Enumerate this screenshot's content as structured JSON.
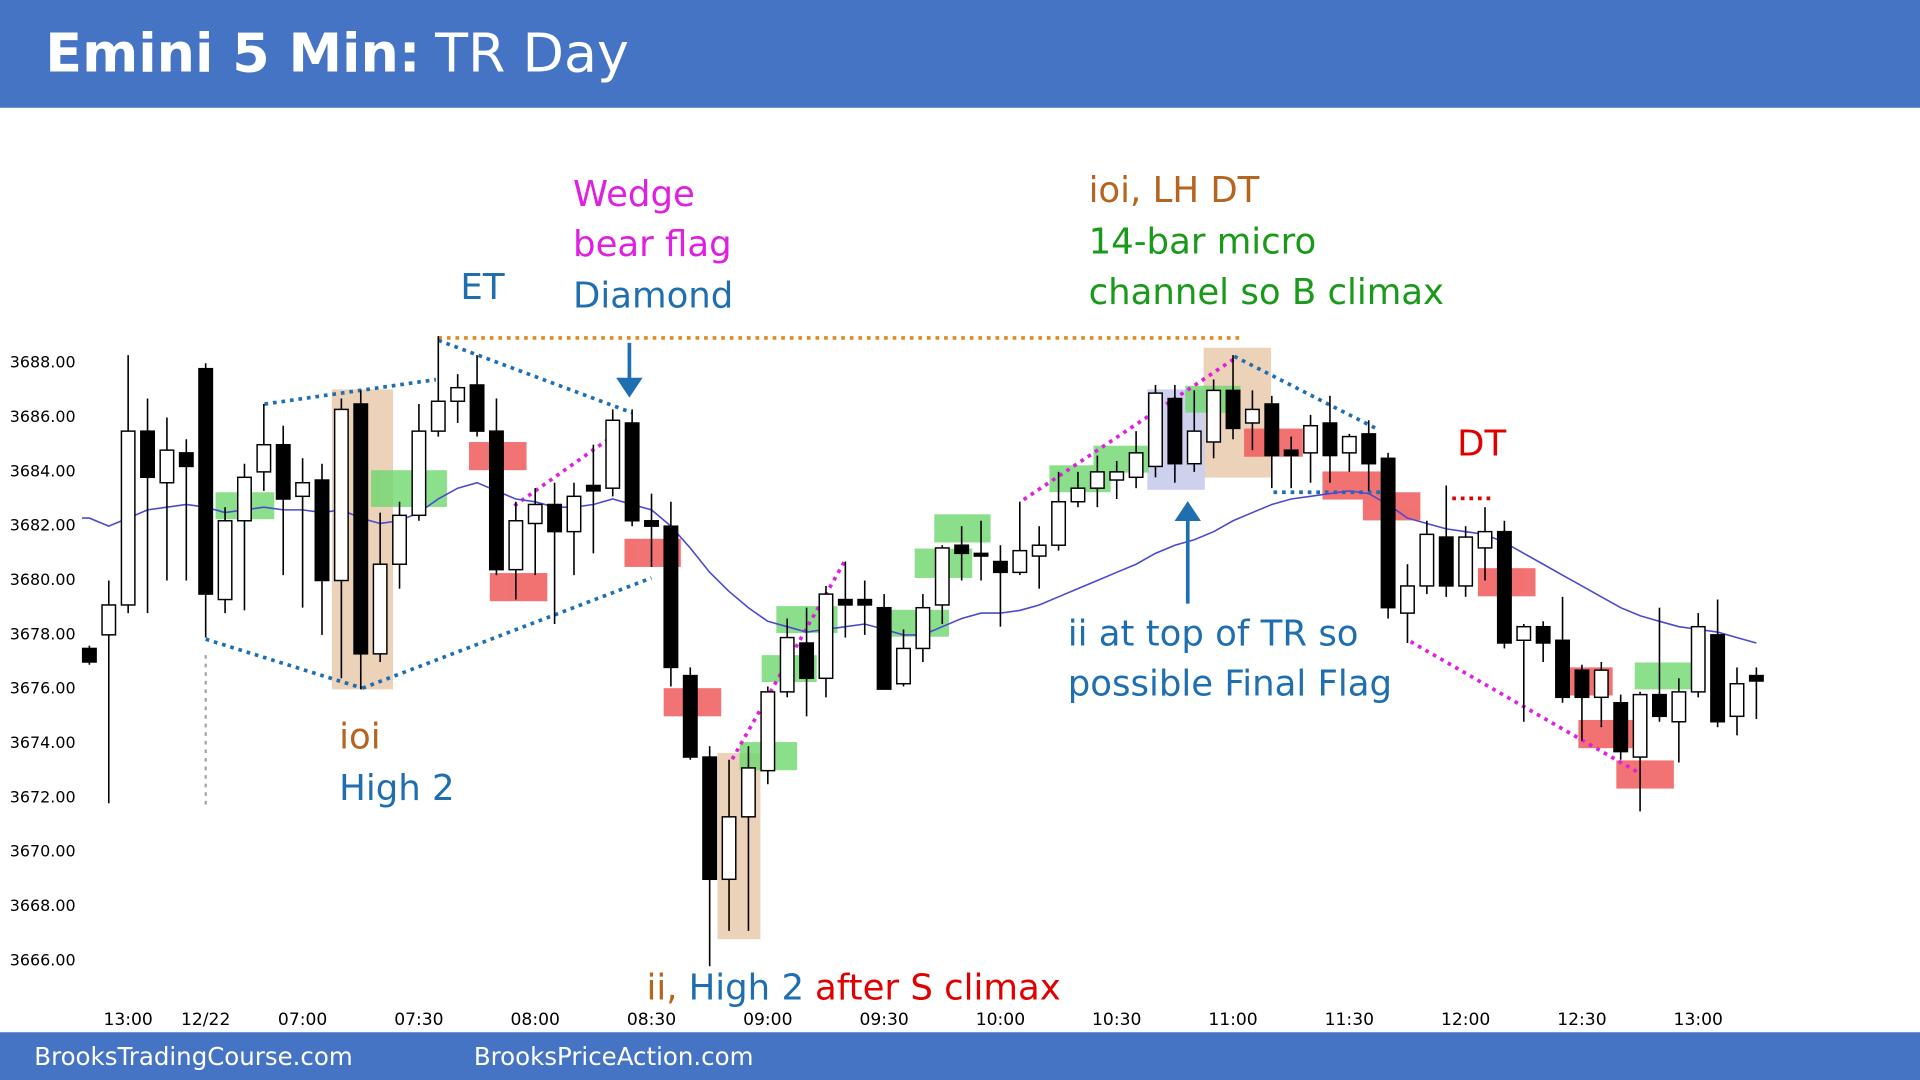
{
  "header": {
    "title_bold": "Emini 5 Min:",
    "title_rest": "TR Day"
  },
  "footer": {
    "left": "BrooksTradingCourse.com",
    "right": "BrooksPriceAction.com"
  },
  "chart_data": {
    "type": "candlestick",
    "categories": [
      null,
      null,
      "13:00",
      null,
      null,
      null,
      "12/22",
      null,
      null,
      null,
      null,
      "07:00",
      null,
      null,
      null,
      null,
      null,
      "07:30",
      null,
      null,
      null,
      null,
      null,
      "08:00",
      null,
      null,
      null,
      null,
      null,
      "08:30",
      null,
      null,
      null,
      null,
      null,
      "09:00",
      null,
      null,
      null,
      null,
      null,
      "09:30",
      null,
      null,
      null,
      null,
      null,
      "10:00",
      null,
      null,
      null,
      null,
      null,
      "10:30",
      null,
      null,
      null,
      null,
      null,
      "11:00",
      null,
      null,
      null,
      null,
      null,
      "11:30",
      null,
      null,
      null,
      null,
      null,
      "12:00",
      null,
      null,
      null,
      null,
      null,
      "12:30",
      null,
      null,
      null,
      null,
      null,
      "13:00",
      null,
      null,
      null
    ],
    "open": [
      3677.5,
      3678,
      3679.1,
      3685.5,
      3683.6,
      3684.7,
      3687.8,
      3679.3,
      3682.2,
      3684,
      3685,
      3683.1,
      3683.7,
      3680,
      3686.5,
      3677.3,
      3680.6,
      3682.4,
      3685.5,
      3686.6,
      3687.2,
      3685.5,
      3680.4,
      3682.1,
      3682.8,
      3681.8,
      3683.5,
      3683.4,
      3685.8,
      3682.2,
      3682,
      3676.5,
      3673.5,
      3669,
      3671.3,
      3673,
      3675.9,
      3677.7,
      3676.4,
      3679.3,
      3679.3,
      3679,
      3676.2,
      3677.5,
      3679.1,
      3681.3,
      3681,
      3680.7,
      3680.3,
      3680.9,
      3681.3,
      3682.9,
      3683.4,
      3683.7,
      3683.8,
      3684.2,
      3686.7,
      3684.3,
      3685.1,
      3687,
      3685.8,
      3686.5,
      3684.8,
      3684.7,
      3685.8,
      3684.7,
      3685.4,
      3684.5,
      3678.8,
      3679.8,
      3681.6,
      3679.8,
      3681.2,
      3681.8,
      3677.8,
      3678.3,
      3677.8,
      3676.7,
      3675.7,
      3675.5,
      3673.5,
      3675.8,
      3674.8,
      3675.9,
      3678,
      3675,
      3676.5
    ],
    "high": [
      3677.6,
      3680,
      3688.3,
      3686.7,
      3686,
      3685.2,
      3688,
      3682.7,
      3684.3,
      3686.5,
      3685.7,
      3684.5,
      3684.3,
      3686.7,
      3687,
      3682.5,
      3682.9,
      3686.5,
      3689,
      3687.6,
      3688.3,
      3686.7,
      3682.9,
      3683.4,
      3683.6,
      3683.6,
      3685,
      3686.3,
      3686.3,
      3683.2,
      3682.9,
      3676.8,
      3673.9,
      3673.4,
      3673.9,
      3676.1,
      3678.6,
      3679,
      3679.8,
      3680.7,
      3680,
      3679.5,
      3678.2,
      3679.5,
      3681.3,
      3682,
      3682.2,
      3681.3,
      3682.9,
      3682,
      3684,
      3684,
      3684.6,
      3684.4,
      3685.5,
      3687.2,
      3687.2,
      3687,
      3687.4,
      3688.3,
      3687,
      3686.8,
      3685.3,
      3686.1,
      3686.8,
      3685.4,
      3685.9,
      3684.7,
      3680.6,
      3682.2,
      3683.5,
      3682,
      3682.7,
      3682.2,
      3678.4,
      3678.5,
      3679.4,
      3676.9,
      3677,
      3675.8,
      3675.9,
      3679,
      3676.4,
      3678.8,
      3679.3,
      3676.8,
      3676.8
    ],
    "low": [
      3676.9,
      3671.8,
      3678.8,
      3678.8,
      3680,
      3680,
      3677.9,
      3678.8,
      3678.9,
      3683.3,
      3680.2,
      3679,
      3678,
      3676.4,
      3676,
      3677,
      3679.7,
      3682.2,
      3685.3,
      3685.8,
      3685.3,
      3680.2,
      3679.3,
      3680.2,
      3678.4,
      3680.2,
      3681,
      3683.1,
      3682,
      3680.5,
      3676.1,
      3673.4,
      3665.8,
      3667.1,
      3667.1,
      3672.5,
      3675.7,
      3675,
      3675.7,
      3677.9,
      3678,
      3676,
      3676.1,
      3677,
      3678.4,
      3680,
      3680,
      3678.3,
      3680.2,
      3679.7,
      3681.1,
      3682.7,
      3682.7,
      3683,
      3683.4,
      3683.8,
      3683.6,
      3684,
      3684.5,
      3685.2,
      3684.8,
      3683.4,
      3683.4,
      3683.6,
      3683.6,
      3684,
      3683.3,
      3678.6,
      3677.7,
      3679.5,
      3679.4,
      3679.4,
      3680,
      3677.5,
      3674.8,
      3677,
      3675.5,
      3674.1,
      3674.6,
      3673.4,
      3671.5,
      3674.8,
      3673.3,
      3675.7,
      3674.6,
      3674.3,
      3674.9
    ],
    "close": [
      3677,
      3679.1,
      3685.5,
      3683.8,
      3684.8,
      3684.2,
      3679.5,
      3682.2,
      3683.8,
      3685,
      3683,
      3683.6,
      3680,
      3686.3,
      3677.3,
      3680.6,
      3682.4,
      3685.5,
      3686.6,
      3687.1,
      3685.5,
      3680.4,
      3682.2,
      3682.8,
      3681.8,
      3683.1,
      3683.3,
      3685.9,
      3682.2,
      3682,
      3676.8,
      3673.5,
      3669,
      3671.3,
      3673.1,
      3675.9,
      3677.9,
      3676.4,
      3679.5,
      3679.1,
      3679.1,
      3676,
      3677.5,
      3679,
      3681.2,
      3681,
      3680.9,
      3680.3,
      3681.1,
      3681.3,
      3682.9,
      3683.4,
      3684,
      3684,
      3684.7,
      3686.9,
      3684.3,
      3685.5,
      3687,
      3685.6,
      3686.3,
      3684.6,
      3684.6,
      3685.7,
      3684.6,
      3685.3,
      3684.3,
      3679,
      3679.8,
      3681.7,
      3679.8,
      3681.6,
      3681.8,
      3677.7,
      3678.3,
      3677.7,
      3675.7,
      3675.7,
      3676.7,
      3673.7,
      3675.8,
      3675,
      3675.9,
      3678.3,
      3674.8,
      3676.2,
      3676.3
    ],
    "ema": [
      3682.3,
      3682,
      3682.3,
      3682.6,
      3682.7,
      3682.8,
      3682.7,
      3682.5,
      3682.6,
      3682.7,
      3682.6,
      3682.6,
      3682.5,
      3682.6,
      3682.3,
      3682.1,
      3682.2,
      3682.5,
      3683,
      3683.4,
      3683.6,
      3683.3,
      3683,
      3682.9,
      3682.7,
      3682.7,
      3682.8,
      3683,
      3682.8,
      3682.6,
      3682,
      3681.2,
      3680.3,
      3679.6,
      3679,
      3678.5,
      3678.3,
      3678.1,
      3678.2,
      3678.3,
      3678.4,
      3678.2,
      3678,
      3678,
      3678.3,
      3678.6,
      3678.8,
      3678.8,
      3678.9,
      3679.1,
      3679.4,
      3679.7,
      3680,
      3680.3,
      3680.6,
      3681,
      3681.3,
      3681.5,
      3681.8,
      3682.2,
      3682.5,
      3682.8,
      3683,
      3683.1,
      3683.2,
      3683.3,
      3683.2,
      3682.8,
      3682.3,
      3682.1,
      3681.9,
      3681.8,
      3681.7,
      3681.4,
      3681,
      3680.6,
      3680.2,
      3679.8,
      3679.4,
      3679,
      3678.7,
      3678.5,
      3678.3,
      3678.2,
      3678.1,
      3677.9,
      3677.7
    ],
    "up_color": "#ffffff",
    "down_color": "#000000",
    "ema_color": "#4a4ad0",
    "ylim": [
      3664,
      3697
    ],
    "yticks": [
      {
        "value": 3666,
        "label": "3666.00"
      },
      {
        "value": 3668,
        "label": "3668.00"
      },
      {
        "value": 3670,
        "label": "3670.00"
      },
      {
        "value": 3672,
        "label": "3672.00"
      },
      {
        "value": 3674,
        "label": "3674.00"
      },
      {
        "value": 3676,
        "label": "3676.00"
      },
      {
        "value": 3678,
        "label": "3678.00"
      },
      {
        "value": 3680,
        "label": "3680.00"
      },
      {
        "value": 3682,
        "label": "3682.00"
      },
      {
        "value": 3684,
        "label": "3684.00"
      },
      {
        "value": 3686,
        "label": "3686.00"
      },
      {
        "value": 3688,
        "label": "3688.00"
      }
    ],
    "annotations": [
      {
        "parts": [
          {
            "text": "ET",
            "color": "#1f6fb0"
          }
        ]
      },
      {
        "parts": [
          {
            "text": "Wedge",
            "color": "#e020e0"
          }
        ]
      },
      {
        "parts": [
          {
            "text": "bear flag",
            "color": "#e020e0"
          }
        ]
      },
      {
        "parts": [
          {
            "text": "Diamond",
            "color": "#1f6fb0"
          }
        ]
      },
      {
        "parts": [
          {
            "text": "ioi, LH DT",
            "color": "#b5651d"
          }
        ]
      },
      {
        "parts": [
          {
            "text": "14-bar micro",
            "color": "#1a9a1a"
          }
        ]
      },
      {
        "parts": [
          {
            "text": "channel so B climax",
            "color": "#1a9a1a"
          }
        ]
      },
      {
        "parts": [
          {
            "text": "DT",
            "color": "#e00000"
          }
        ]
      },
      {
        "parts": [
          {
            "text": "ii at top of TR so",
            "color": "#1f6fb0"
          }
        ]
      },
      {
        "parts": [
          {
            "text": "possible Final Flag",
            "color": "#1f6fb0"
          }
        ]
      },
      {
        "parts": [
          {
            "text": "ioi",
            "color": "#b5651d"
          }
        ]
      },
      {
        "parts": [
          {
            "text": "High 2",
            "color": "#1f6fb0"
          }
        ]
      },
      {
        "parts": [
          {
            "text": "ii,",
            "color": "#b5651d"
          },
          {
            "text": "High 2",
            "color": "#1f6fb0"
          },
          {
            "text": "after S climax",
            "color": "#e00000"
          }
        ]
      }
    ]
  }
}
